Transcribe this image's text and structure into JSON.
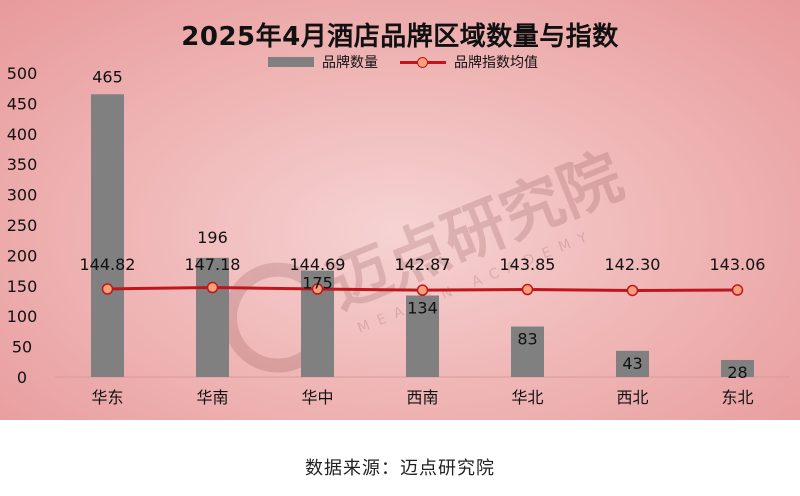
{
  "chart_data": {
    "type": "bar",
    "title": "2025年4月酒店品牌区域数量与指数",
    "categories": [
      "华东",
      "华南",
      "华中",
      "西南",
      "华北",
      "西北",
      "东北"
    ],
    "series": [
      {
        "name": "品牌数量",
        "type": "bar",
        "color": "#808080",
        "values": [
          465,
          196,
          175,
          134,
          83,
          43,
          28
        ]
      },
      {
        "name": "品牌指数均值",
        "type": "line",
        "color": "#c0161b",
        "marker_color": "#f4a07a",
        "values": [
          144.82,
          147.18,
          144.69,
          142.87,
          143.85,
          142.3,
          143.06
        ],
        "labels": [
          "144.82",
          "147.18",
          "144.69",
          "142.87",
          "143.85",
          "142.30",
          "143.06"
        ]
      }
    ],
    "y_ticks": [
      0,
      50,
      100,
      150,
      200,
      250,
      300,
      350,
      400,
      450,
      500
    ],
    "ylim": [
      0,
      500
    ],
    "legend_position": "top-center",
    "grid": false
  },
  "watermark": {
    "text_cn": "迈点研究院",
    "text_en": "MEADIN ACADEMY"
  },
  "footer": {
    "source": "数据来源：迈点研究院"
  }
}
